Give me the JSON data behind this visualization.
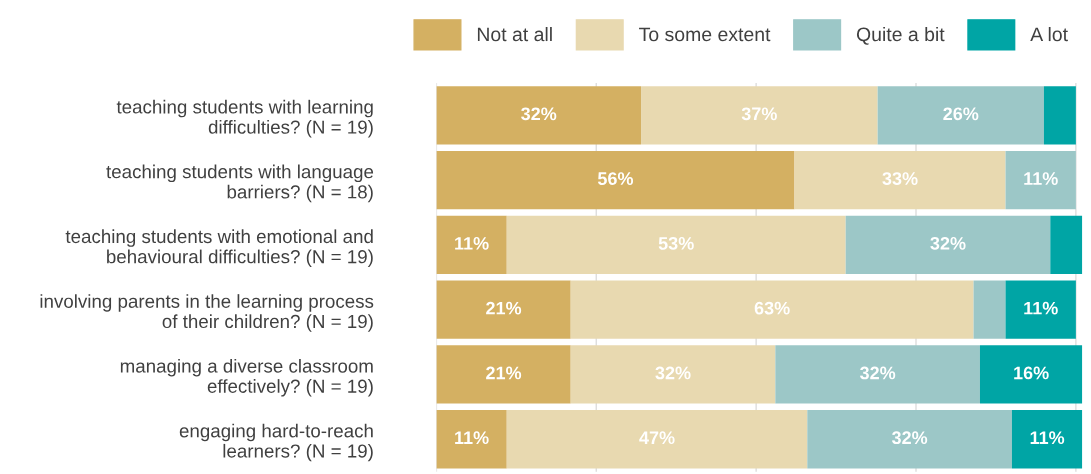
{
  "chart_data": {
    "type": "bar",
    "orientation": "horizontal",
    "stacked": true,
    "categories": [
      "teaching students with learning\ndifficulties? (N = 19)",
      "teaching students with language\nbarriers? (N = 18)",
      "teaching students with emotional and\nbehavioural difficulties? (N = 19)",
      "involving parents in the learning process\nof their children? (N = 19)",
      "managing a diverse classroom\neffectively? (N = 19)",
      "engaging hard-to-reach\nlearners? (N = 19)"
    ],
    "series": [
      {
        "name": "Not at all",
        "color": "#d4b062",
        "values": [
          32,
          56,
          11,
          21,
          21,
          11
        ],
        "value_labels": [
          "32%",
          "56%",
          "11%",
          "21%",
          "21%",
          "11%"
        ]
      },
      {
        "name": "To some extent",
        "color": "#e8d9b0",
        "values": [
          37,
          33,
          53,
          63,
          32,
          47
        ],
        "value_labels": [
          "37%",
          "33%",
          "53%",
          "63%",
          "32%",
          "47%"
        ]
      },
      {
        "name": "Quite a bit",
        "color": "#9cc7c7",
        "values": [
          26,
          11,
          32,
          5,
          32,
          32
        ],
        "value_labels": [
          "26%",
          "11%",
          "32%",
          null,
          "32%",
          "32%"
        ]
      },
      {
        "name": "A lot",
        "color": "#00a5a5",
        "values": [
          5,
          0,
          5,
          11,
          16,
          11
        ],
        "value_labels": [
          null,
          null,
          null,
          "11%",
          "16%",
          "11%"
        ]
      }
    ],
    "xlim": [
      0,
      101
    ],
    "xticks": [
      {
        "value": 0,
        "label": null
      },
      {
        "value": 25,
        "label": null
      },
      {
        "value": 50,
        "label": null
      },
      {
        "value": 75,
        "label": null
      },
      {
        "value": 100,
        "label": null
      }
    ],
    "tick_labels": "y",
    "grid": "x",
    "legend": "top right"
  }
}
